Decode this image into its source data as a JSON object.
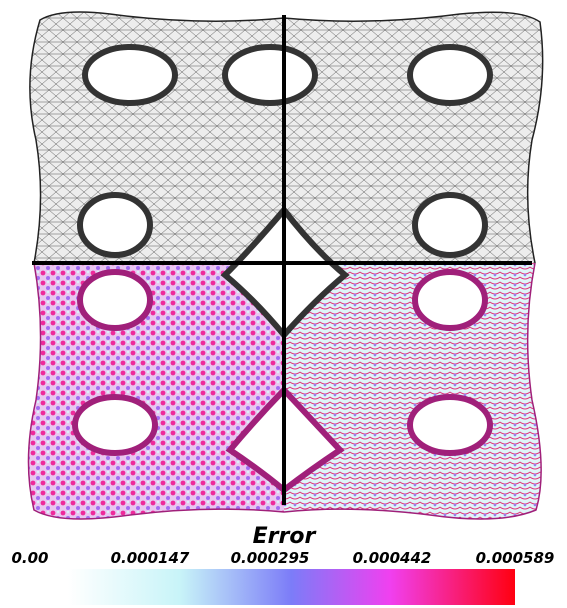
{
  "colorbar": {
    "title": "Error",
    "labels": [
      "0.00",
      "0.000147",
      "0.000295",
      "0.000442",
      "0.000589"
    ]
  }
}
